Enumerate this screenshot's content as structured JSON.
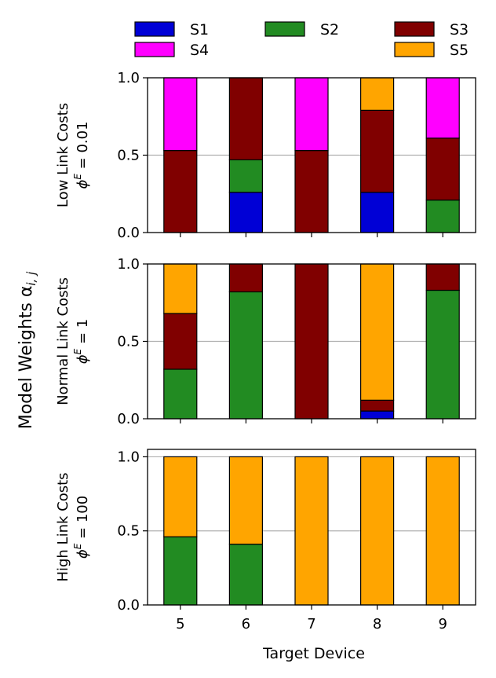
{
  "chart_data": {
    "type": "bar",
    "stacked": true,
    "colors": {
      "S1": "#0000d6",
      "S2": "#228b22",
      "S3": "#800000",
      "S4": "#ff00ff",
      "S5": "#ffa500"
    },
    "legend": [
      "S1",
      "S2",
      "S3",
      "S4",
      "S5"
    ],
    "categories": [
      "5",
      "6",
      "7",
      "8",
      "9"
    ],
    "xlabel": "Target Device",
    "ylabel": "Model Weights α",
    "ylabel_subscript": "i, j",
    "yticks": [
      "0.0",
      "0.5",
      "1.0"
    ],
    "panels": [
      {
        "title_line1": "Low Link Costs",
        "title_line2_symbol": "ϕ",
        "title_line2_sup": "E",
        "title_line2_rest": " = 0.01",
        "ylim": [
          0,
          1.0
        ],
        "series": [
          {
            "name": "S1",
            "values": [
              0.0,
              0.26,
              0.0,
              0.26,
              0.0
            ]
          },
          {
            "name": "S2",
            "values": [
              0.0,
              0.21,
              0.0,
              0.0,
              0.21
            ]
          },
          {
            "name": "S3",
            "values": [
              0.53,
              0.53,
              0.53,
              0.53,
              0.4
            ]
          },
          {
            "name": "S4",
            "values": [
              0.47,
              0.0,
              0.47,
              0.0,
              0.39
            ]
          },
          {
            "name": "S5",
            "values": [
              0.0,
              0.0,
              0.0,
              0.21,
              0.0
            ]
          }
        ]
      },
      {
        "title_line1": "Normal Link Costs",
        "title_line2_symbol": "ϕ",
        "title_line2_sup": "E",
        "title_line2_rest": " = 1",
        "ylim": [
          0,
          1.0
        ],
        "series": [
          {
            "name": "S1",
            "values": [
              0.0,
              0.0,
              0.0,
              0.05,
              0.0
            ]
          },
          {
            "name": "S2",
            "values": [
              0.32,
              0.82,
              0.0,
              0.0,
              0.83
            ]
          },
          {
            "name": "S3",
            "values": [
              0.36,
              0.18,
              1.0,
              0.07,
              0.17
            ]
          },
          {
            "name": "S4",
            "values": [
              0.0,
              0.0,
              0.0,
              0.0,
              0.0
            ]
          },
          {
            "name": "S5",
            "values": [
              0.32,
              0.0,
              0.0,
              0.88,
              0.0
            ]
          }
        ]
      },
      {
        "title_line1": "High Link Costs",
        "title_line2_symbol": "ϕ",
        "title_line2_sup": "E",
        "title_line2_rest": " = 100",
        "ylim": [
          0,
          1.05
        ],
        "series": [
          {
            "name": "S1",
            "values": [
              0.0,
              0.0,
              0.0,
              0.0,
              0.0
            ]
          },
          {
            "name": "S2",
            "values": [
              0.46,
              0.41,
              0.0,
              0.0,
              0.0
            ]
          },
          {
            "name": "S3",
            "values": [
              0.0,
              0.0,
              0.0,
              0.0,
              0.0
            ]
          },
          {
            "name": "S4",
            "values": [
              0.0,
              0.0,
              0.0,
              0.0,
              0.0
            ]
          },
          {
            "name": "S5",
            "values": [
              0.54,
              0.59,
              1.0,
              1.0,
              1.0
            ]
          }
        ]
      }
    ]
  }
}
